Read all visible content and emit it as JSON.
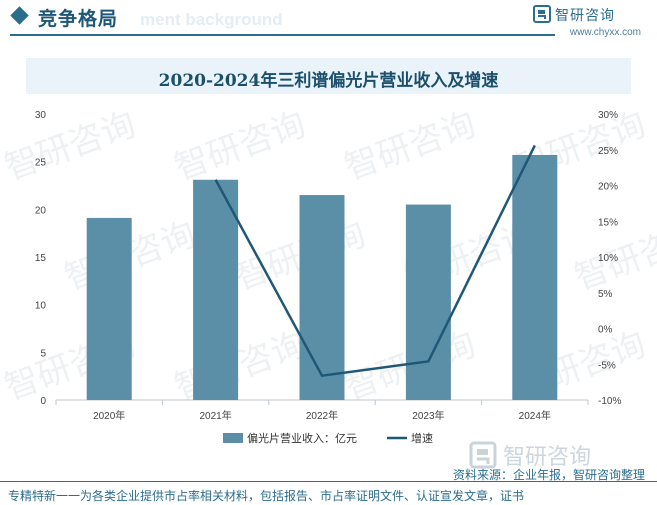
{
  "header": {
    "section_title": "竞争格局",
    "ghost_text": "ment background",
    "brand_name": "智研咨询",
    "brand_url": "www.chyxx.com"
  },
  "chart_data": {
    "type": "bar+line",
    "title": "2020-2024年三利谱偏光片营业收入及增速",
    "categories": [
      "2020年",
      "2021年",
      "2022年",
      "2023年",
      "2024年"
    ],
    "series": [
      {
        "name": "偏光片营业收入：亿元",
        "type": "bar",
        "axis": "left",
        "color": "#5b8fa8",
        "values": [
          19.1,
          23.1,
          21.5,
          20.5,
          25.7
        ]
      },
      {
        "name": "增速",
        "type": "line",
        "axis": "right",
        "color": "#1f5877",
        "values": [
          null,
          20.8,
          -6.6,
          -4.6,
          25.6
        ]
      }
    ],
    "left_axis": {
      "ylim": [
        0,
        30
      ],
      "ticks": [
        "0",
        "5",
        "10",
        "15",
        "20",
        "25",
        "30"
      ]
    },
    "right_axis": {
      "ylim": [
        -10,
        30
      ],
      "ticks": [
        "-10%",
        "-5%",
        "0%",
        "5%",
        "10%",
        "15%",
        "20%",
        "25%",
        "30%"
      ]
    },
    "grid": false,
    "legend_position": "bottom"
  },
  "footer": {
    "source": "资料来源：企业年报，智研咨询整理",
    "watermark": "智研咨询",
    "note": "专精特新一一为各类企业提供市占率相关材料，包括报告、市占率证明文件、认证宣发文章，证书"
  }
}
